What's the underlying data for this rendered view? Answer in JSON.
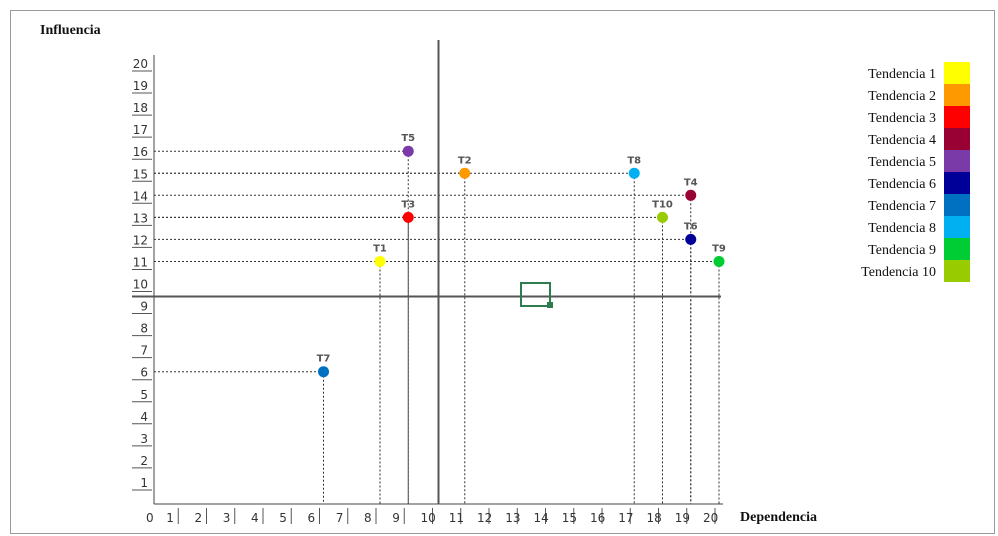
{
  "chart_data": {
    "type": "scatter",
    "xlabel": "Dependencia",
    "ylabel": "Influencia",
    "xlim": [
      0,
      20
    ],
    "ylim": [
      0,
      20
    ],
    "x_ticks": [
      "0",
      "1",
      "2",
      "3",
      "4",
      "5",
      "6",
      "7",
      "8",
      "9",
      "10",
      "11",
      "12",
      "13",
      "14",
      "15",
      "16",
      "17",
      "18",
      "19",
      "20"
    ],
    "y_ticks": [
      "1",
      "2",
      "3",
      "4",
      "5",
      "6",
      "7",
      "8",
      "9",
      "10",
      "11",
      "12",
      "13",
      "14",
      "15",
      "16",
      "17",
      "18",
      "19",
      "20"
    ],
    "quadrant_divider": {
      "x": 10,
      "y": 9.5
    },
    "points": [
      {
        "label": "T1",
        "x": 8,
        "y": 11,
        "color": "#ffff00"
      },
      {
        "label": "T2",
        "x": 11,
        "y": 15,
        "color": "#ff9900"
      },
      {
        "label": "T3",
        "x": 9,
        "y": 13,
        "color": "#ff0000"
      },
      {
        "label": "T4",
        "x": 19,
        "y": 14,
        "color": "#990033"
      },
      {
        "label": "T5",
        "x": 9,
        "y": 16,
        "color": "#7a3aa8"
      },
      {
        "label": "T6",
        "x": 19,
        "y": 12,
        "color": "#000099"
      },
      {
        "label": "T7",
        "x": 6,
        "y": 6,
        "color": "#0070c0"
      },
      {
        "label": "T8",
        "x": 17,
        "y": 15,
        "color": "#00b0f0"
      },
      {
        "label": "T9",
        "x": 20,
        "y": 11,
        "color": "#00cc33"
      },
      {
        "label": "T10",
        "x": 18,
        "y": 13,
        "color": "#99cc00"
      }
    ],
    "legend": {
      "placement": "right",
      "entries": [
        {
          "name": "Tendencia 1",
          "color": "#ffff00"
        },
        {
          "name": "Tendencia 2",
          "color": "#ff9900"
        },
        {
          "name": "Tendencia 3",
          "color": "#ff0000"
        },
        {
          "name": "Tendencia 4",
          "color": "#990033"
        },
        {
          "name": "Tendencia 5",
          "color": "#7a3aa8"
        },
        {
          "name": "Tendencia 6",
          "color": "#000099"
        },
        {
          "name": "Tendencia 7",
          "color": "#0070c0"
        },
        {
          "name": "Tendencia 8",
          "color": "#00b0f0"
        },
        {
          "name": "Tendencia 9",
          "color": "#00cc33"
        },
        {
          "name": "Tendencia 10",
          "color": "#99cc00"
        }
      ]
    }
  }
}
